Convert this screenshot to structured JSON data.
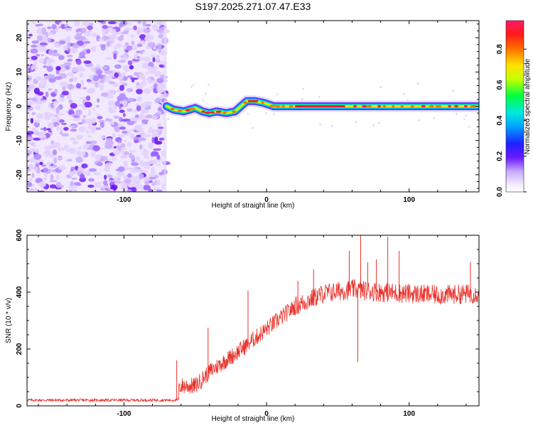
{
  "title": "S197.2025.271.07.47.E33",
  "chart_data": [
    {
      "type": "heatmap",
      "name": "spectrogram",
      "xlabel": "Height of straight line (km)",
      "ylabel": "Frequency (Hz)",
      "xlim": [
        -168,
        149
      ],
      "ylim": [
        -25,
        25
      ],
      "xticks": [
        -100,
        0,
        100
      ],
      "yticks": [
        -20,
        -10,
        0,
        10,
        20
      ],
      "noise_region": {
        "x_range": [
          -168,
          -70
        ],
        "y_range": [
          -25,
          25
        ]
      },
      "track": [
        {
          "x": -70,
          "y": 0
        },
        {
          "x": -65,
          "y": -1
        },
        {
          "x": -58,
          "y": -1.5
        },
        {
          "x": -50,
          "y": -0.5
        },
        {
          "x": -45,
          "y": -1.5
        },
        {
          "x": -40,
          "y": -2
        },
        {
          "x": -35,
          "y": -1.5
        },
        {
          "x": -28,
          "y": -2
        },
        {
          "x": -22,
          "y": -1.5
        },
        {
          "x": -18,
          "y": 0
        },
        {
          "x": -14,
          "y": 1.5
        },
        {
          "x": -8,
          "y": 1.5
        },
        {
          "x": -2,
          "y": 1
        },
        {
          "x": 5,
          "y": 0
        },
        {
          "x": 20,
          "y": 0
        },
        {
          "x": 60,
          "y": 0
        },
        {
          "x": 100,
          "y": 0
        },
        {
          "x": 148,
          "y": 0
        }
      ],
      "colorbar": {
        "label": "Normalized spectral amplitude",
        "ticks": [
          0.0,
          0.2,
          0.4,
          0.6,
          0.8
        ],
        "tick_labels": [
          "0.0",
          "0.2",
          "0.4",
          "0.6",
          "0.8"
        ],
        "range": [
          0,
          0.96
        ]
      }
    },
    {
      "type": "line",
      "name": "snr",
      "xlabel": "Height of straight line (km)",
      "ylabel": "SNR (10 * v/v)",
      "xlim": [
        -168,
        149
      ],
      "ylim": [
        0,
        600
      ],
      "xticks": [
        -100,
        0,
        100
      ],
      "yticks": [
        0,
        200,
        400,
        600
      ],
      "color": "#e8312a",
      "trend": [
        {
          "x": -168,
          "y": 20
        },
        {
          "x": -62,
          "y": 20
        },
        {
          "x": -61,
          "y": 70
        },
        {
          "x": -50,
          "y": 70
        },
        {
          "x": -40,
          "y": 120
        },
        {
          "x": -20,
          "y": 190
        },
        {
          "x": 0,
          "y": 270
        },
        {
          "x": 20,
          "y": 350
        },
        {
          "x": 40,
          "y": 395
        },
        {
          "x": 60,
          "y": 410
        },
        {
          "x": 80,
          "y": 400
        },
        {
          "x": 100,
          "y": 395
        },
        {
          "x": 120,
          "y": 390
        },
        {
          "x": 149,
          "y": 395
        }
      ],
      "spikes": [
        {
          "x": -63,
          "y": 160
        },
        {
          "x": -41,
          "y": 275
        },
        {
          "x": -13,
          "y": 405
        },
        {
          "x": 22,
          "y": 440
        },
        {
          "x": 33,
          "y": 480
        },
        {
          "x": 58,
          "y": 545
        },
        {
          "x": 64,
          "y": 155
        },
        {
          "x": 66,
          "y": 600
        },
        {
          "x": 71,
          "y": 505
        },
        {
          "x": 77,
          "y": 515
        },
        {
          "x": 85,
          "y": 595
        },
        {
          "x": 93,
          "y": 545
        },
        {
          "x": 143,
          "y": 505
        }
      ]
    }
  ]
}
